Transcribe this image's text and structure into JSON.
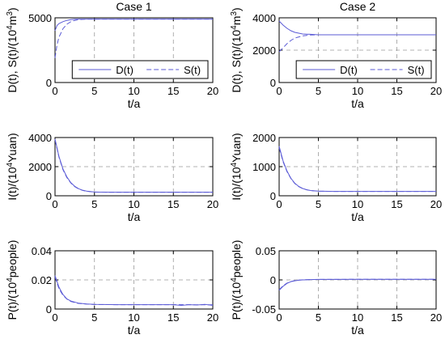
{
  "chart_data": [
    {
      "type": "line",
      "title": "Case 1",
      "xlabel": "t/a",
      "ylabel": "D(t),  S(t)/(10^4m^3)",
      "xlim": [
        0,
        20
      ],
      "ylim": [
        0,
        5000
      ],
      "xticks": [
        0,
        5,
        10,
        15,
        20
      ],
      "yticks": [
        0,
        5000
      ],
      "yticklabels": [
        "0",
        "5000"
      ],
      "grid": true,
      "legend": {
        "position": "lower-right",
        "entries": [
          "D(t)",
          "S(t)"
        ]
      },
      "series": [
        {
          "name": "D(t)",
          "style": "solid",
          "x": [
            0,
            0.25,
            0.5,
            1,
            1.5,
            2,
            2.5,
            3,
            4,
            5,
            10,
            15,
            20
          ],
          "y": [
            4000,
            4400,
            4550,
            4700,
            4800,
            4860,
            4890,
            4900,
            4900,
            4900,
            4900,
            4900,
            4900
          ]
        },
        {
          "name": "S(t)",
          "style": "dashed",
          "x": [
            0,
            0.25,
            0.5,
            1,
            1.5,
            2,
            2.5,
            3,
            4,
            5,
            10,
            15,
            20
          ],
          "y": [
            1900,
            2900,
            3500,
            4150,
            4500,
            4700,
            4800,
            4860,
            4900,
            4900,
            4900,
            4900,
            4900
          ]
        }
      ]
    },
    {
      "type": "line",
      "title": "Case 2",
      "xlabel": "t/a",
      "ylabel": "D(t),  S(t)/(10^4m^3)",
      "xlim": [
        0,
        20
      ],
      "ylim": [
        0,
        4000
      ],
      "xticks": [
        0,
        5,
        10,
        15,
        20
      ],
      "yticks": [
        0,
        2000,
        4000
      ],
      "yticklabels": [
        "0",
        "2000",
        "4000"
      ],
      "grid": true,
      "legend": {
        "position": "lower-right",
        "entries": [
          "D(t)",
          "S(t)"
        ]
      },
      "series": [
        {
          "name": "D(t)",
          "style": "solid",
          "x": [
            0,
            0.5,
            1,
            1.5,
            2,
            3,
            4,
            5,
            10,
            15,
            20
          ],
          "y": [
            3800,
            3550,
            3350,
            3200,
            3100,
            3000,
            2980,
            2950,
            2950,
            2950,
            2950
          ]
        },
        {
          "name": "S(t)",
          "style": "dashed",
          "x": [
            0,
            0.5,
            1,
            1.5,
            2,
            3,
            4,
            5,
            10,
            15,
            20
          ],
          "y": [
            1900,
            2150,
            2400,
            2600,
            2750,
            2880,
            2940,
            2950,
            2950,
            2950,
            2950
          ]
        }
      ]
    },
    {
      "type": "line",
      "title": "",
      "xlabel": "t/a",
      "ylabel": "I(t)/(10^4Yuan)",
      "xlim": [
        0,
        20
      ],
      "ylim": [
        0,
        4000
      ],
      "xticks": [
        0,
        5,
        10,
        15,
        20
      ],
      "yticks": [
        0,
        2000,
        4000
      ],
      "yticklabels": [
        "0",
        "2000",
        "4000"
      ],
      "grid": true,
      "series": [
        {
          "style": "solid",
          "x": [
            0,
            0.5,
            1,
            1.5,
            2,
            2.5,
            3,
            3.5,
            4,
            5,
            7,
            10,
            15,
            20
          ],
          "y": [
            3900,
            2700,
            1850,
            1300,
            900,
            650,
            480,
            380,
            320,
            260,
            240,
            240,
            240,
            240
          ]
        },
        {
          "style": "dashed",
          "x": [
            0,
            0.5,
            1,
            1.5,
            2,
            2.5,
            3,
            3.5,
            4,
            5,
            7,
            10,
            15,
            20
          ],
          "y": [
            3850,
            2650,
            1800,
            1250,
            880,
            630,
            470,
            370,
            310,
            255,
            240,
            240,
            240,
            240
          ]
        }
      ]
    },
    {
      "type": "line",
      "title": "",
      "xlabel": "t/a",
      "ylabel": "I(t)/(10^4Yuan)",
      "xlim": [
        0,
        20
      ],
      "ylim": [
        0,
        2000
      ],
      "xticks": [
        0,
        5,
        10,
        15,
        20
      ],
      "yticks": [
        0,
        1000,
        2000
      ],
      "yticklabels": [
        "0",
        "1000",
        "2000"
      ],
      "grid": true,
      "series": [
        {
          "style": "solid",
          "x": [
            0,
            0.5,
            1,
            1.5,
            2,
            2.5,
            3,
            3.5,
            4,
            5,
            7,
            10,
            15,
            20
          ],
          "y": [
            1700,
            1200,
            850,
            600,
            430,
            320,
            250,
            210,
            180,
            160,
            150,
            150,
            150,
            150
          ]
        },
        {
          "style": "dashed",
          "x": [
            0,
            0.5,
            1,
            1.5,
            2,
            2.5,
            3,
            3.5,
            4,
            5,
            7,
            10,
            15,
            20
          ],
          "y": [
            1650,
            1170,
            830,
            590,
            420,
            315,
            245,
            205,
            178,
            158,
            150,
            150,
            150,
            150
          ]
        }
      ]
    },
    {
      "type": "line",
      "title": "",
      "xlabel": "t/a",
      "ylabel": "P(t)/(10^4people)",
      "xlim": [
        0,
        20
      ],
      "ylim": [
        0,
        0.04
      ],
      "xticks": [
        0,
        5,
        10,
        15,
        20
      ],
      "yticks": [
        0,
        0.02,
        0.04
      ],
      "yticklabels": [
        "0",
        "0.02",
        "0.04"
      ],
      "grid": true,
      "series": [
        {
          "style": "solid",
          "x": [
            0,
            0.5,
            1,
            1.5,
            2,
            3,
            4,
            5,
            8,
            10,
            15,
            16,
            17,
            18,
            19,
            20
          ],
          "y": [
            0.023,
            0.015,
            0.01,
            0.007,
            0.0055,
            0.004,
            0.0035,
            0.0032,
            0.003,
            0.003,
            0.003,
            0.0025,
            0.003,
            0.0028,
            0.0032,
            0.0025
          ]
        },
        {
          "style": "dashed",
          "x": [
            0,
            0.5,
            1,
            1.5,
            2,
            3,
            4,
            5,
            8,
            10,
            15,
            20
          ],
          "y": [
            0.022,
            0.014,
            0.0095,
            0.0068,
            0.0052,
            0.0038,
            0.0034,
            0.0031,
            0.003,
            0.003,
            0.003,
            0.0029
          ]
        }
      ]
    },
    {
      "type": "line",
      "title": "",
      "xlabel": "t/a",
      "ylabel": "P(t)/(10^4people)",
      "xlim": [
        0,
        20
      ],
      "ylim": [
        -0.05,
        0.05
      ],
      "xticks": [
        0,
        5,
        10,
        15,
        20
      ],
      "yticks": [
        -0.05,
        0,
        0.05
      ],
      "yticklabels": [
        "-0.05",
        "0",
        "0.05"
      ],
      "grid": true,
      "series": [
        {
          "style": "solid",
          "x": [
            0,
            0.5,
            1,
            1.5,
            2,
            2.5,
            3,
            4,
            5,
            10,
            15,
            20
          ],
          "y": [
            -0.018,
            -0.011,
            -0.006,
            -0.003,
            -0.0015,
            -0.0005,
            0,
            0.0005,
            0.0008,
            0.001,
            0.001,
            0.001
          ]
        },
        {
          "style": "dashed",
          "x": [
            0,
            0.5,
            1,
            1.5,
            2,
            2.5,
            3,
            4,
            5,
            10,
            15,
            20
          ],
          "y": [
            -0.017,
            -0.01,
            -0.0055,
            -0.0028,
            -0.0012,
            -0.0003,
            0.0002,
            0.0006,
            0.0008,
            0.001,
            0.001,
            0.001
          ]
        }
      ]
    }
  ]
}
